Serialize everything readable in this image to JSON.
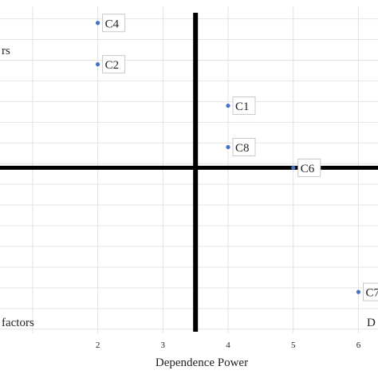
{
  "chart_data": {
    "type": "scatter",
    "title": "",
    "xlabel": "Dependence Power",
    "ylabel": "",
    "xlim": [
      0.5,
      6.3
    ],
    "ylim": [
      0.4,
      8.3
    ],
    "grid": true,
    "x_ticks": [
      1,
      2,
      3,
      4,
      5,
      6
    ],
    "x_tick_labels": [
      "",
      "2",
      "3",
      "4",
      "5",
      "6"
    ],
    "quadrant_divider": {
      "x": 3.5,
      "y": 4.4
    },
    "quadrant_labels": [
      {
        "text": "rs",
        "position": "top-left"
      },
      {
        "text": "factors",
        "position": "bottom-left"
      },
      {
        "text": "D",
        "position": "bottom-right"
      }
    ],
    "point_color": "#4472c4",
    "points": [
      {
        "label": "C4",
        "x": 2,
        "y": 7.9
      },
      {
        "label": "C2",
        "x": 2,
        "y": 6.9
      },
      {
        "label": "C1",
        "x": 4,
        "y": 5.9
      },
      {
        "label": "C8",
        "x": 4,
        "y": 4.9
      },
      {
        "label": "C6",
        "x": 5,
        "y": 4.4
      },
      {
        "label": "C7",
        "x": 6,
        "y": 1.4
      }
    ]
  }
}
